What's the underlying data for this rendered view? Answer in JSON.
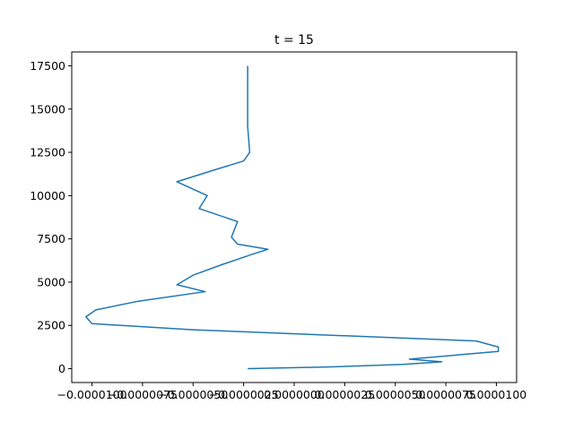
{
  "chart_data": {
    "type": "line",
    "title": "t = 15",
    "xlabel": "",
    "ylabel": "",
    "xlim": [
      -1.1e-05,
      1.1e-05
    ],
    "ylim": [
      -800,
      18300
    ],
    "grid": false,
    "line_color": "#1f77b4",
    "x_ticks": [
      -1e-05,
      -7.5e-06,
      -5e-06,
      -2.5e-06,
      0,
      2.5e-06,
      5e-06,
      7.5e-06,
      1e-05
    ],
    "x_tick_labels": [
      "−0.0000100",
      "−0.0000075",
      "−0.0000050",
      "−0.0000025",
      "0.0000000",
      "0.0000025",
      "0.0000050",
      "0.0000075",
      "0.0000100"
    ],
    "y_ticks": [
      0,
      2500,
      5000,
      7500,
      10000,
      12500,
      15000,
      17500
    ],
    "y_tick_labels": [
      "0",
      "2500",
      "5000",
      "7500",
      "10000",
      "12500",
      "15000",
      "17500"
    ],
    "series": [
      {
        "x": [
          -2.3e-06,
          1.7e-06,
          5.4e-06,
          7.3e-06,
          5.7e-06,
          1.01e-05,
          1.01e-05,
          9e-06,
          -5e-06,
          -1e-05,
          -1.03e-05,
          -9.8e-06,
          -7.7e-06,
          -4.4e-06,
          -5.8e-06,
          -5e-06,
          -3.6e-06,
          -2.1e-06,
          -1.3e-06,
          -2.8e-06,
          -3.1e-06,
          -2.8e-06,
          -4.7e-06,
          -4.3e-06,
          -5.8e-06,
          -3.9e-06,
          -2.5e-06,
          -2.2e-06,
          -2.3e-06,
          -2.3e-06,
          -2.3e-06
        ],
        "y": [
          0,
          100,
          250,
          400,
          550,
          1000,
          1250,
          1600,
          2250,
          2600,
          3000,
          3400,
          3900,
          4450,
          4850,
          5400,
          6000,
          6600,
          6900,
          7200,
          7600,
          8500,
          9250,
          10000,
          10800,
          11500,
          12000,
          12500,
          14000,
          15500,
          17500
        ]
      }
    ]
  }
}
